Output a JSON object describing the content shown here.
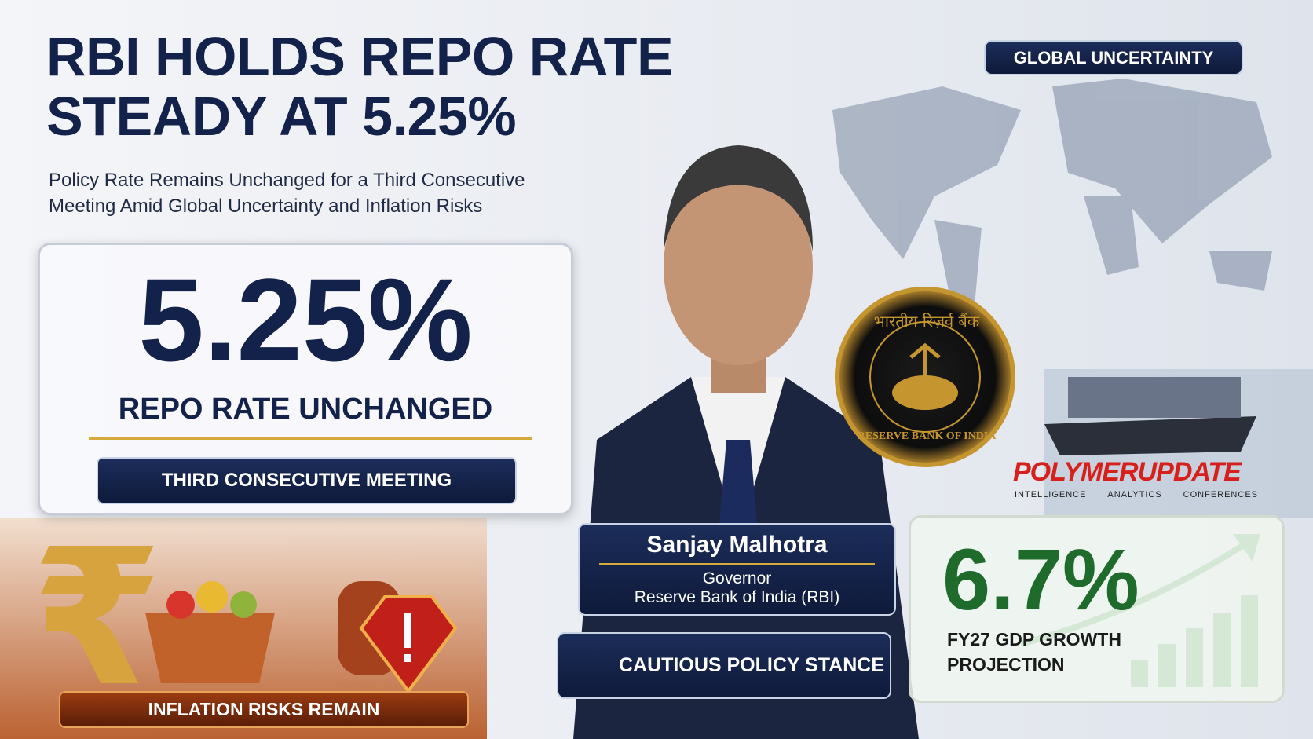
{
  "header": {
    "title_lines": [
      "RBI HOLDS REPO RATE",
      "STEADY AT 5.25%"
    ],
    "subtitle_lines": [
      "Policy Rate Remains Unchanged for a Third Consecutive",
      "Meeting Amid Global Uncertainty and Inflation Risks"
    ]
  },
  "global_badge": "GLOBAL UNCERTAINTY",
  "rate_card": {
    "value": "5.25%",
    "caption": "REPO RATE UNCHANGED",
    "pill": "THIRD CONSECUTIVE MEETING"
  },
  "seal": {
    "hindi": "भारतीय रिज़र्व बैंक",
    "english": "RESERVE BANK OF INDIA"
  },
  "brand": {
    "name": "POLYMERUPDATE",
    "tagline": [
      "INTELLIGENCE",
      "ANALYTICS",
      "CONFERENCES"
    ]
  },
  "person_card": {
    "name": "Sanjay Malhotra",
    "role": "Governor",
    "org": "Reserve Bank of India (RBI)"
  },
  "stance": "CAUTIOUS POLICY STANCE",
  "gdp_card": {
    "value": "6.7%",
    "caption_lines": [
      "FY27 GDP GROWTH",
      "PROJECTION"
    ]
  },
  "inflation_badge": "INFLATION RISKS REMAIN"
}
